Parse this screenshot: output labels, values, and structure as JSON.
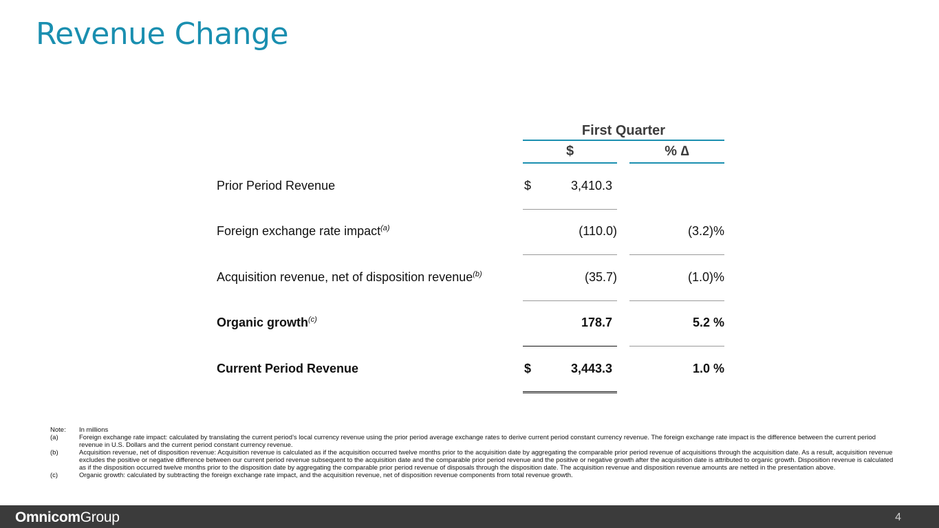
{
  "title": "Revenue Change",
  "table": {
    "period_header": "First Quarter",
    "col_dollar": "$",
    "col_pct": "% ∆",
    "rows": [
      {
        "label": "Prior Period Revenue",
        "sup": "",
        "currency": "$",
        "amount": "3,410.3",
        "pct": "",
        "bold": false
      },
      {
        "label": "Foreign exchange rate impact",
        "sup": "(a)",
        "currency": "",
        "amount": "(110.0)",
        "pct": "(3.2)%",
        "bold": false
      },
      {
        "label": "Acquisition revenue, net of disposition revenue",
        "sup": "(b)",
        "currency": "",
        "amount": "(35.7)",
        "pct": "(1.0)%",
        "bold": false
      },
      {
        "label": "Organic growth",
        "sup": "(c)",
        "currency": "",
        "amount": "178.7",
        "pct": "5.2 %",
        "bold": true
      },
      {
        "label": "Current Period Revenue",
        "sup": "",
        "currency": "$",
        "amount": "3,443.3",
        "pct": "1.0 %",
        "bold": true
      }
    ]
  },
  "notes": [
    {
      "key": "Note:",
      "text": "In millions"
    },
    {
      "key": "(a)",
      "text": "Foreign exchange rate impact: calculated by translating the current period’s local currency revenue using the prior period average exchange rates to derive current period constant currency revenue. The foreign exchange rate impact is the difference between the current period revenue in U.S. Dollars and the current period constant currency revenue."
    },
    {
      "key": "(b)",
      "text": "Acquisition revenue, net of disposition revenue: Acquisition revenue is calculated as if the acquisition occurred twelve months prior to the acquisition date by aggregating the comparable prior period revenue of acquisitions through the acquisition date. As a result, acquisition revenue excludes the positive or negative difference between our current period revenue subsequent to the acquisition date and the comparable prior period revenue and the positive or negative growth after the acquisition date is attributed to organic growth. Disposition revenue is calculated as if the disposition occurred twelve months prior to the disposition date by aggregating the comparable prior period revenue of disposals through the disposition date. The acquisition revenue and disposition revenue amounts are netted in the presentation above."
    },
    {
      "key": "(c)",
      "text": "Organic growth: calculated by subtracting the foreign exchange rate impact, and the acquisition revenue, net of disposition revenue components from total revenue growth."
    }
  ],
  "footer": {
    "logo_bold": "Omnicom",
    "logo_light": "Group",
    "page_number": "4"
  },
  "colors": {
    "accent": "#1a8fb0",
    "footer_bg": "#3b3b3b"
  }
}
